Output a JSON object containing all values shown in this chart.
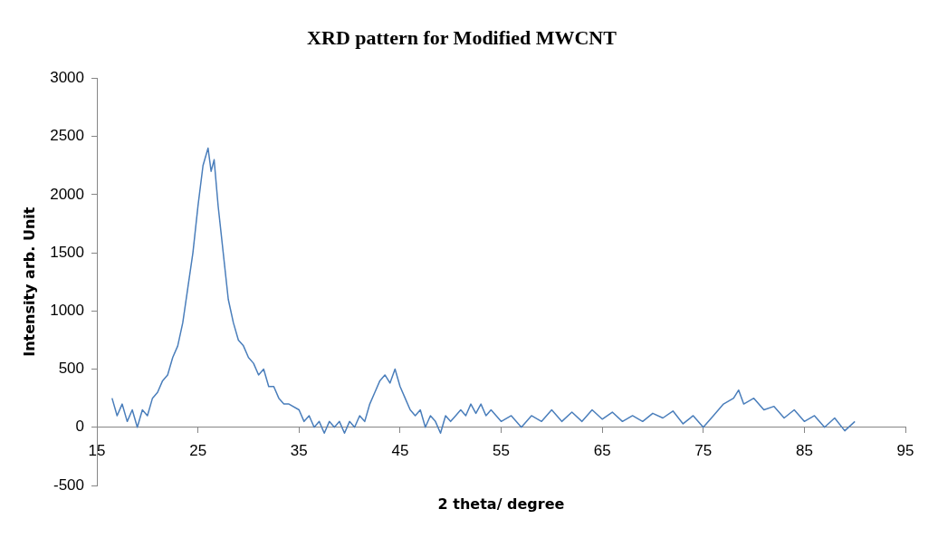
{
  "chart_data": {
    "type": "line",
    "title": "XRD pattern for Modified MWCNT",
    "xlabel": "2 theta/ degree",
    "ylabel": "Intensity arb. Unit",
    "xlim": [
      15,
      95
    ],
    "xticks": [
      15,
      25,
      35,
      45,
      55,
      65,
      75,
      85,
      95
    ],
    "ylim": [
      -500,
      3000
    ],
    "yticks": [
      -500,
      0,
      500,
      1000,
      1500,
      2000,
      2500,
      3000
    ],
    "grid": false,
    "legend": false,
    "marker": "none",
    "line_style": "solid",
    "series": [
      {
        "color": "#4a7ebb",
        "x": [
          16.5,
          17,
          17.5,
          18,
          18.5,
          19,
          19.5,
          20,
          20.5,
          21,
          21.5,
          22,
          22.5,
          23,
          23.5,
          24,
          24.5,
          25,
          25.5,
          26,
          26.3,
          26.6,
          27,
          27.5,
          28,
          28.5,
          29,
          29.5,
          30,
          30.5,
          31,
          31.5,
          32,
          32.5,
          33,
          33.5,
          34,
          35,
          35.5,
          36,
          36.5,
          37,
          37.5,
          38,
          38.5,
          39,
          39.5,
          40,
          40.5,
          41,
          41.5,
          42,
          42.5,
          43,
          43.5,
          44,
          44.5,
          45,
          45.5,
          46,
          46.5,
          47,
          47.5,
          48,
          48.5,
          49,
          49.5,
          50,
          50.5,
          51,
          51.5,
          52,
          52.5,
          53,
          53.5,
          54,
          55,
          56,
          57,
          58,
          59,
          60,
          61,
          62,
          63,
          64,
          65,
          66,
          67,
          68,
          69,
          70,
          71,
          72,
          73,
          74,
          75,
          76,
          77,
          78,
          78.5,
          79,
          80,
          81,
          82,
          83,
          84,
          85,
          86,
          87,
          88,
          89,
          90
        ],
        "values": [
          250,
          100,
          200,
          50,
          150,
          0,
          150,
          100,
          250,
          300,
          400,
          450,
          600,
          700,
          900,
          1200,
          1500,
          1900,
          2250,
          2400,
          2200,
          2300,
          1900,
          1500,
          1100,
          900,
          750,
          700,
          600,
          550,
          450,
          500,
          350,
          350,
          250,
          200,
          200,
          150,
          50,
          100,
          0,
          50,
          -50,
          50,
          0,
          50,
          -50,
          50,
          0,
          100,
          50,
          200,
          300,
          400,
          450,
          380,
          500,
          350,
          250,
          150,
          100,
          150,
          0,
          100,
          50,
          -50,
          100,
          50,
          100,
          150,
          100,
          200,
          120,
          200,
          100,
          150,
          50,
          100,
          0,
          100,
          50,
          150,
          50,
          130,
          50,
          150,
          70,
          130,
          50,
          100,
          50,
          120,
          80,
          140,
          30,
          100,
          0,
          100,
          200,
          250,
          320,
          200,
          250,
          150,
          180,
          80,
          150,
          50,
          100,
          0,
          80,
          -30,
          50
        ]
      }
    ]
  }
}
